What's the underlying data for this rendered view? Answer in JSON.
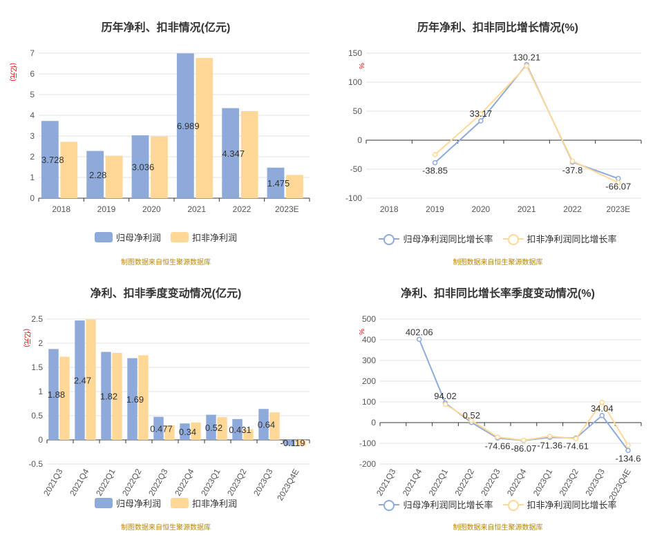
{
  "source_note": "制图数据来自恒生聚源数据库",
  "chart_data": [
    {
      "id": "annual_profit",
      "type": "bar",
      "title": "历年净利、扣非情况(亿元)",
      "ylabel": "(亿元)",
      "categories": [
        "2018",
        "2019",
        "2020",
        "2021",
        "2022",
        "2023E"
      ],
      "series": [
        {
          "name": "归母净利润",
          "values": [
            3.728,
            2.28,
            3.036,
            6.989,
            4.347,
            1.475
          ],
          "color": "#8eaadb"
        },
        {
          "name": "扣非净利润",
          "values": [
            2.72,
            2.05,
            2.98,
            6.77,
            4.2,
            1.12
          ],
          "color": "#ffd898"
        }
      ],
      "data_labels": [
        "3.728",
        "2.28",
        "3.036",
        "6.989",
        "4.347",
        "1.475"
      ],
      "ylim": [
        0,
        7
      ],
      "yticks": [
        0,
        1,
        2,
        3,
        4,
        5,
        6,
        7
      ],
      "grid": true,
      "legend": "bottom"
    },
    {
      "id": "annual_growth",
      "type": "line",
      "title": "历年净利、扣非同比增长情况(%)",
      "ylabel": "%",
      "categories": [
        "2018",
        "2019",
        "2020",
        "2021",
        "2022",
        "2023E"
      ],
      "series": [
        {
          "name": "归母净利润同比增长率",
          "values": [
            null,
            -38.85,
            33.17,
            130.21,
            -37.8,
            -66.07
          ],
          "color": "#8eaadb"
        },
        {
          "name": "扣非净利润同比增长率",
          "values": [
            null,
            -25,
            45,
            128,
            -36,
            -73
          ],
          "color": "#ffd898"
        }
      ],
      "data_labels": [
        "",
        "-38.85",
        "33.17",
        "130.21",
        "-37.8",
        "-66.07"
      ],
      "ylim": [
        -100,
        150
      ],
      "yticks": [
        -100,
        -50,
        0,
        50,
        100,
        150
      ],
      "grid": true,
      "legend": "bottom"
    },
    {
      "id": "quarterly_profit",
      "type": "bar",
      "title": "净利、扣非季度变动情况(亿元)",
      "ylabel": "(亿元)",
      "categories": [
        "2021Q3",
        "2021Q4",
        "2022Q1",
        "2022Q2",
        "2022Q3",
        "2022Q4",
        "2023Q1",
        "2023Q2",
        "2023Q3",
        "2023Q4E"
      ],
      "series": [
        {
          "name": "归母净利润",
          "values": [
            1.88,
            2.47,
            1.82,
            1.69,
            0.477,
            0.34,
            0.52,
            0.431,
            0.64,
            -0.119
          ],
          "color": "#8eaadb"
        },
        {
          "name": "扣非净利润",
          "values": [
            1.72,
            2.49,
            1.8,
            1.75,
            0.3,
            0.36,
            0.47,
            0.22,
            0.57,
            -0.12
          ],
          "color": "#ffd898"
        }
      ],
      "data_labels": [
        "1.88",
        "2.47",
        "1.82",
        "1.69",
        "0.477",
        "0.34",
        "0.52",
        "0.431",
        "0.64",
        "-0.119"
      ],
      "ylim": [
        -0.5,
        2.5
      ],
      "yticks": [
        -0.5,
        0,
        0.5,
        1,
        1.5,
        2,
        2.5
      ],
      "grid": true,
      "legend": "bottom"
    },
    {
      "id": "quarterly_growth",
      "type": "line",
      "title": "净利、扣非同比增长率季度变动情况(%)",
      "ylabel": "%",
      "categories": [
        "2021Q3",
        "2021Q4",
        "2022Q1",
        "2022Q2",
        "2022Q3",
        "2022Q4",
        "2023Q1",
        "2023Q2",
        "2023Q3",
        "2023Q4E"
      ],
      "series": [
        {
          "name": "归母净利润同比增长率",
          "values": [
            null,
            402.06,
            94.02,
            0.52,
            -74.66,
            -86.07,
            -71.36,
            -74.61,
            34.04,
            -134.6
          ],
          "color": "#8eaadb"
        },
        {
          "name": "扣非净利润同比增长率",
          "values": [
            null,
            null,
            88,
            10,
            -70,
            -85,
            -66,
            -78,
            98,
            -110
          ],
          "color": "#ffd898"
        }
      ],
      "data_labels": [
        "",
        "402.06",
        "94.02",
        "0.52",
        "-74.66",
        "-86.07",
        "-71.36",
        "-74.61",
        "34.04",
        "-134.6"
      ],
      "ylim": [
        -200,
        500
      ],
      "yticks": [
        -200,
        -100,
        0,
        100,
        200,
        300,
        400,
        500
      ],
      "grid": true,
      "legend": "bottom"
    }
  ]
}
